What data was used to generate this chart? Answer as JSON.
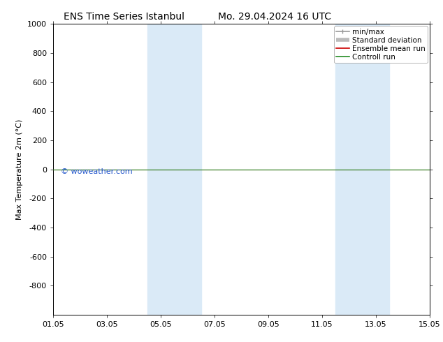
{
  "title_left": "ENS Time Series Istanbul",
  "title_right": "Mo. 29.04.2024 16 UTC",
  "ylabel": "Max Temperature 2m (°C)",
  "ylim_top": -1000,
  "ylim_bottom": 1000,
  "yticks": [
    -800,
    -600,
    -400,
    -200,
    0,
    200,
    400,
    600,
    800,
    1000
  ],
  "xlim": [
    0,
    14
  ],
  "xtick_labels": [
    "01.05",
    "03.05",
    "05.05",
    "07.05",
    "09.05",
    "11.05",
    "13.05",
    "15.05"
  ],
  "xtick_positions": [
    0,
    2,
    4,
    6,
    8,
    10,
    12,
    14
  ],
  "shaded_bands": [
    {
      "x_start": 3.5,
      "x_end": 5.5
    },
    {
      "x_start": 10.5,
      "x_end": 12.5
    }
  ],
  "band_color": "#daeaf7",
  "green_line_y": 0,
  "red_line_y": 0,
  "green_color": "#228B22",
  "red_color": "#cc0000",
  "watermark": "© woweather.com",
  "watermark_color": "#2255cc",
  "legend_items": [
    "min/max",
    "Standard deviation",
    "Ensemble mean run",
    "Controll run"
  ],
  "legend_line_colors": [
    "#999999",
    "#bbbbbb",
    "#cc0000",
    "#228B22"
  ],
  "background_color": "#ffffff",
  "plot_bg_color": "#ffffff",
  "title_fontsize": 10,
  "axis_fontsize": 8,
  "tick_fontsize": 8,
  "legend_fontsize": 7.5
}
